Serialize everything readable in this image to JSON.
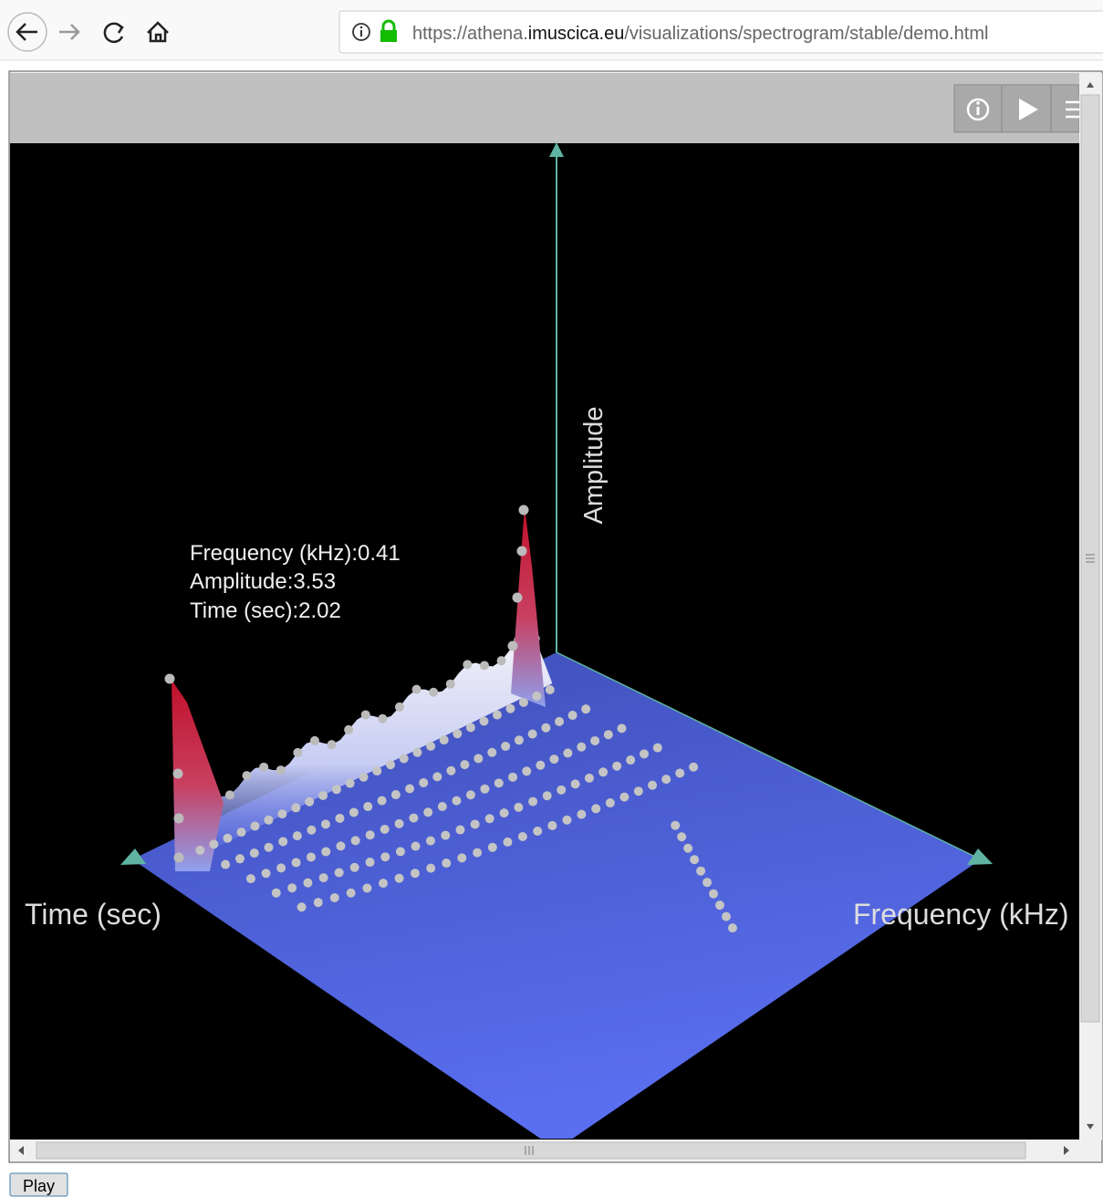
{
  "browser": {
    "url_prefix": "https://athena.",
    "url_domain": "imuscica.eu",
    "url_path": "/visualizations/spectrogram/stable/demo.html"
  },
  "plot": {
    "axes": {
      "amplitude": "Amplitude",
      "time": "Time (sec)",
      "frequency": "Frequency (kHz)"
    },
    "tooltip": [
      "Frequency (kHz):0.41",
      "Amplitude:3.53",
      "Time (sec):2.02"
    ]
  },
  "controls": {
    "play": "Play"
  }
}
